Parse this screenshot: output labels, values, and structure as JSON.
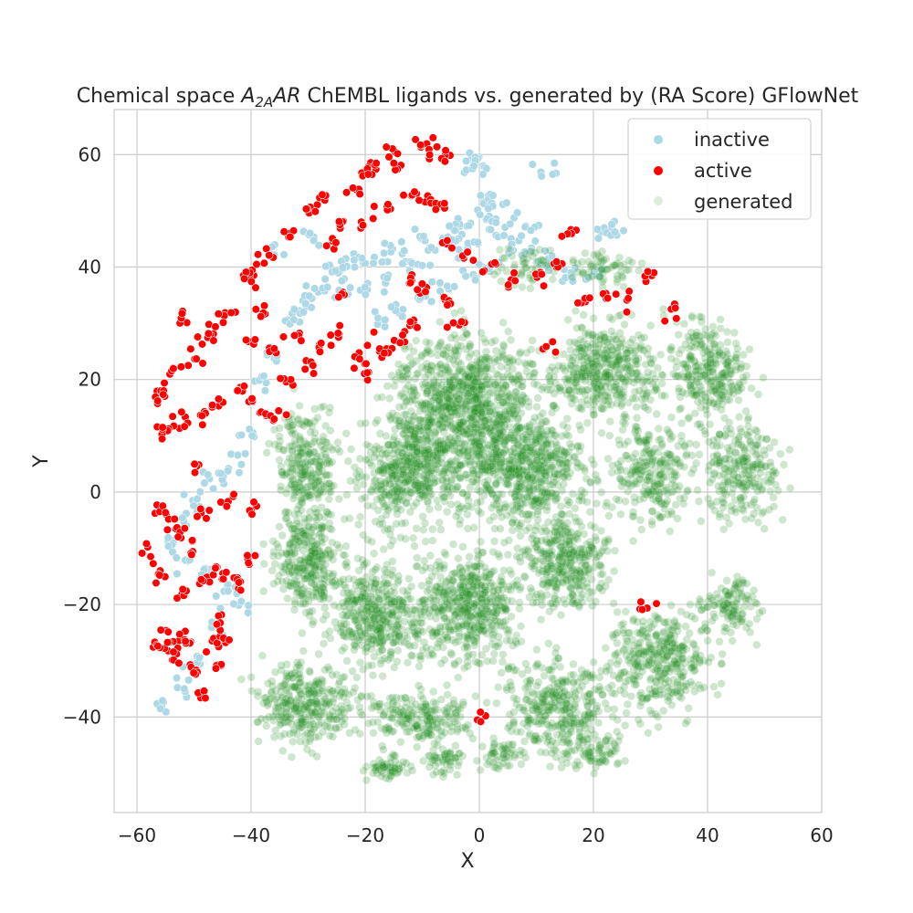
{
  "chart_data": {
    "type": "scatter",
    "title_parts": [
      "Chemical space ",
      "A",
      "2A",
      "AR",
      " ChEMBL ligands vs. generated by (RA Score) GFlowNet"
    ],
    "xlabel": "X",
    "ylabel": "Y",
    "xlim": [
      -64,
      60
    ],
    "ylim": [
      -57,
      68
    ],
    "xticks": [
      -60,
      -40,
      -20,
      0,
      20,
      40,
      60
    ],
    "xtick_labels": [
      "−60",
      "−40",
      "−20",
      "0",
      "20",
      "40",
      "60"
    ],
    "yticks": [
      -40,
      -20,
      0,
      20,
      40,
      60
    ],
    "ytick_labels": [
      "−40",
      "−20",
      "0",
      "20",
      "40",
      "60"
    ],
    "grid": true,
    "legend_position": "top-right",
    "series": [
      {
        "name": "inactive",
        "color": "#add8e6",
        "points": [
          [
            -2,
            58
          ],
          [
            -1,
            59
          ],
          [
            0,
            58
          ],
          [
            2,
            52
          ],
          [
            3,
            51
          ],
          [
            5,
            50
          ],
          [
            1,
            49
          ],
          [
            -3,
            47
          ],
          [
            -6,
            46
          ],
          [
            -10,
            45
          ],
          [
            -14,
            43
          ],
          [
            -17,
            42
          ],
          [
            -20,
            41
          ],
          [
            -22,
            40
          ],
          [
            -25,
            39
          ],
          [
            -28,
            36
          ],
          [
            -30,
            34
          ],
          [
            -31,
            32
          ],
          [
            -33,
            30
          ],
          [
            -36,
            24
          ],
          [
            -38,
            20
          ],
          [
            -40,
            10
          ],
          [
            -42,
            5
          ],
          [
            -45,
            3
          ],
          [
            -48,
            2
          ],
          [
            -50,
            -2
          ],
          [
            -52,
            -5
          ],
          [
            -54,
            -8
          ],
          [
            -52,
            -12
          ],
          [
            -48,
            -14
          ],
          [
            -44,
            -18
          ],
          [
            -42,
            -20
          ],
          [
            -46,
            -24
          ],
          [
            -50,
            -30
          ],
          [
            -52,
            -34
          ],
          [
            -55,
            -38
          ],
          [
            -24,
            35
          ],
          [
            -20,
            36
          ],
          [
            -16,
            38
          ],
          [
            -12,
            40
          ],
          [
            -8,
            42
          ],
          [
            -4,
            44
          ],
          [
            0,
            45
          ],
          [
            4,
            46
          ],
          [
            8,
            44
          ],
          [
            12,
            42
          ],
          [
            14,
            40
          ],
          [
            16,
            38
          ],
          [
            20,
            39
          ],
          [
            22,
            46
          ],
          [
            24,
            47
          ],
          [
            12,
            57
          ],
          [
            9,
            47
          ],
          [
            6,
            43
          ],
          [
            -18,
            30
          ],
          [
            -14,
            32
          ],
          [
            -10,
            34
          ],
          [
            -6,
            36
          ],
          [
            -2,
            38
          ],
          [
            2,
            40
          ],
          [
            -26,
            40
          ],
          [
            -35,
            42
          ],
          [
            -30,
            45
          ]
        ]
      },
      {
        "name": "active",
        "color": "#ff0000",
        "points": [
          [
            -10,
            62
          ],
          [
            -8,
            61
          ],
          [
            -6,
            60
          ],
          [
            -15,
            60
          ],
          [
            -14,
            58
          ],
          [
            -18,
            58
          ],
          [
            -20,
            57
          ],
          [
            -12,
            53
          ],
          [
            -9,
            52
          ],
          [
            -7,
            51
          ],
          [
            -16,
            50
          ],
          [
            -20,
            48
          ],
          [
            -24,
            48
          ],
          [
            -28,
            52
          ],
          [
            -30,
            50
          ],
          [
            -33,
            46
          ],
          [
            -37,
            42
          ],
          [
            -40,
            39
          ],
          [
            -41,
            38
          ],
          [
            -44,
            32
          ],
          [
            -46,
            30
          ],
          [
            -48,
            28
          ],
          [
            -52,
            31
          ],
          [
            -50,
            24
          ],
          [
            -53,
            22
          ],
          [
            -55,
            18
          ],
          [
            -56,
            17
          ],
          [
            -54,
            12
          ],
          [
            -56,
            11
          ],
          [
            -52,
            13
          ],
          [
            -48,
            14
          ],
          [
            -46,
            16
          ],
          [
            -42,
            18
          ],
          [
            -40,
            16
          ],
          [
            -38,
            14
          ],
          [
            -36,
            13
          ],
          [
            -34,
            20
          ],
          [
            -30,
            22
          ],
          [
            -28,
            26
          ],
          [
            -25,
            28
          ],
          [
            -22,
            24
          ],
          [
            -20,
            22
          ],
          [
            -18,
            26
          ],
          [
            -16,
            25
          ],
          [
            -14,
            27
          ],
          [
            -12,
            30
          ],
          [
            -36,
            25
          ],
          [
            -38,
            32
          ],
          [
            -40,
            26
          ],
          [
            -32,
            28
          ],
          [
            -56,
            -3
          ],
          [
            -54,
            -5
          ],
          [
            -52,
            -7
          ],
          [
            -50,
            -10
          ],
          [
            -58,
            -11
          ],
          [
            -56,
            -15
          ],
          [
            -52,
            -18
          ],
          [
            -48,
            -16
          ],
          [
            -46,
            -14
          ],
          [
            -44,
            -15
          ],
          [
            -42,
            -17
          ],
          [
            -40,
            -12
          ],
          [
            -40,
            -3
          ],
          [
            -44,
            -1
          ],
          [
            -48,
            -3
          ],
          [
            -50,
            4
          ],
          [
            -52,
            -26
          ],
          [
            -54,
            -28
          ],
          [
            -55,
            -25
          ],
          [
            -53,
            -30
          ],
          [
            -51,
            -27
          ],
          [
            -56,
            -27
          ],
          [
            -50,
            -32
          ],
          [
            -47,
            -27
          ],
          [
            -45,
            -26
          ],
          [
            -46,
            -31
          ],
          [
            -48,
            -36
          ],
          [
            -45,
            -23
          ],
          [
            -5,
            44
          ],
          [
            -2,
            42
          ],
          [
            2,
            40
          ],
          [
            6,
            38
          ],
          [
            10,
            38
          ],
          [
            14,
            40
          ],
          [
            16,
            46
          ],
          [
            18,
            34
          ],
          [
            22,
            35
          ],
          [
            26,
            34
          ],
          [
            30,
            39
          ],
          [
            34,
            32
          ],
          [
            29,
            -20
          ],
          [
            0,
            -40
          ],
          [
            12,
            26
          ],
          [
            -6,
            34
          ],
          [
            -10,
            36
          ],
          [
            -12,
            38
          ],
          [
            -4,
            30
          ],
          [
            -24,
            36
          ],
          [
            -26,
            44
          ],
          [
            -22,
            54
          ]
        ]
      },
      {
        "name": "generated",
        "color": "#228b22",
        "clusters": [
          {
            "cx": -2,
            "cy": 16,
            "sx": 10,
            "sy": 10,
            "n": 900
          },
          {
            "cx": 8,
            "cy": 4,
            "sx": 9,
            "sy": 8,
            "n": 600
          },
          {
            "cx": -12,
            "cy": 4,
            "sx": 8,
            "sy": 8,
            "n": 500
          },
          {
            "cx": 22,
            "cy": 22,
            "sx": 8,
            "sy": 7,
            "n": 420
          },
          {
            "cx": 40,
            "cy": 22,
            "sx": 6,
            "sy": 7,
            "n": 280
          },
          {
            "cx": 46,
            "cy": 4,
            "sx": 6,
            "sy": 7,
            "n": 240
          },
          {
            "cx": 30,
            "cy": 4,
            "sx": 6,
            "sy": 8,
            "n": 260
          },
          {
            "cx": 15,
            "cy": -12,
            "sx": 7,
            "sy": 7,
            "n": 360
          },
          {
            "cx": -2,
            "cy": -20,
            "sx": 8,
            "sy": 8,
            "n": 520
          },
          {
            "cx": -18,
            "cy": -22,
            "sx": 7,
            "sy": 8,
            "n": 420
          },
          {
            "cx": -30,
            "cy": -12,
            "sx": 5,
            "sy": 8,
            "n": 300
          },
          {
            "cx": -30,
            "cy": 5,
            "sx": 5,
            "sy": 8,
            "n": 260
          },
          {
            "cx": -30,
            "cy": -38,
            "sx": 7,
            "sy": 6,
            "n": 320
          },
          {
            "cx": -10,
            "cy": -40,
            "sx": 7,
            "sy": 4,
            "n": 200
          },
          {
            "cx": 14,
            "cy": -38,
            "sx": 8,
            "sy": 7,
            "n": 340
          },
          {
            "cx": 32,
            "cy": -30,
            "sx": 7,
            "sy": 8,
            "n": 360
          },
          {
            "cx": 44,
            "cy": -20,
            "sx": 4,
            "sy": 5,
            "n": 120
          },
          {
            "cx": -16,
            "cy": -49,
            "sx": 3,
            "sy": 2,
            "n": 60
          },
          {
            "cx": -6,
            "cy": -48,
            "sx": 3,
            "sy": 2,
            "n": 50
          },
          {
            "cx": 4,
            "cy": -47,
            "sx": 3,
            "sy": 2,
            "n": 50
          },
          {
            "cx": 20,
            "cy": -46,
            "sx": 5,
            "sy": 3,
            "n": 80
          },
          {
            "cx": 22,
            "cy": 40,
            "sx": 5,
            "sy": 3,
            "n": 60
          },
          {
            "cx": 8,
            "cy": 40,
            "sx": 4,
            "sy": 3,
            "n": 50
          }
        ]
      }
    ]
  }
}
